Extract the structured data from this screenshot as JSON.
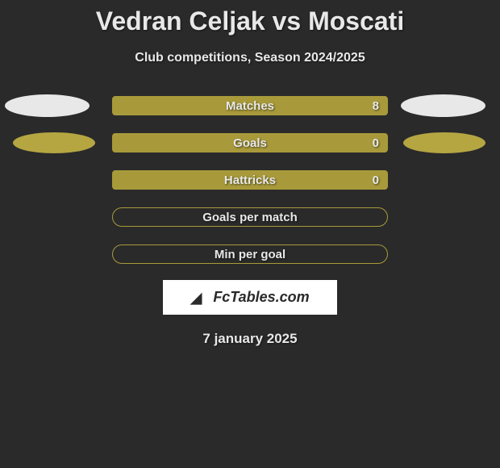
{
  "header": {
    "title": "Vedran Celjak vs Moscati",
    "subtitle": "Club competitions, Season 2024/2025"
  },
  "stats": [
    {
      "label": "Matches",
      "value": "8",
      "filled": true,
      "left_ellipse": "white",
      "right_ellipse": "white"
    },
    {
      "label": "Goals",
      "value": "0",
      "filled": true,
      "left_ellipse": "gold",
      "right_ellipse": "gold"
    },
    {
      "label": "Hattricks",
      "value": "0",
      "filled": true,
      "left_ellipse": null,
      "right_ellipse": null
    },
    {
      "label": "Goals per match",
      "value": "",
      "filled": false,
      "left_ellipse": null,
      "right_ellipse": null
    },
    {
      "label": "Min per goal",
      "value": "",
      "filled": false,
      "left_ellipse": null,
      "right_ellipse": null
    }
  ],
  "branding": {
    "logo_text": "FcTables.com"
  },
  "footer": {
    "date": "7 january 2025"
  },
  "colors": {
    "background": "#2a2a2a",
    "bar_fill": "#a89a3a",
    "text": "#e8e8e8",
    "ellipse_white": "#e8e8e8",
    "ellipse_gold": "#b5a642",
    "logo_bg": "#ffffff"
  }
}
